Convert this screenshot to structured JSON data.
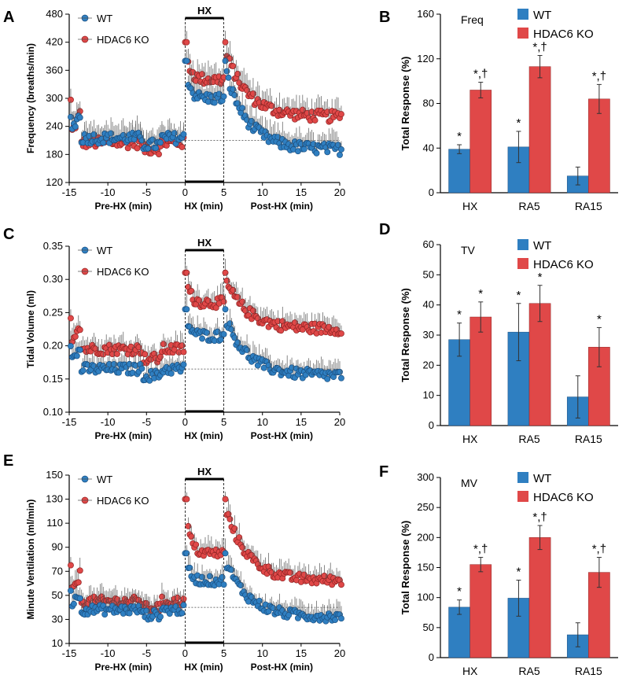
{
  "colors": {
    "wt": "#2f7fc1",
    "ko": "#e04848",
    "wt_edge": "#1a4f80",
    "ko_edge": "#8f2323",
    "axis": "#000000",
    "error": "#555555"
  },
  "chart_data": [
    {
      "id": "A",
      "panel_letter": "A",
      "type": "scatter",
      "ylabel": "Frequency (breaths/min)",
      "ylim": [
        120,
        480
      ],
      "yticks": [
        "120",
        "180",
        "240",
        "300",
        "360",
        "420",
        "480"
      ],
      "xlim": [
        -15,
        20
      ],
      "xticks": [
        "-15",
        "-10",
        "-5",
        "0",
        "5",
        "10",
        "15",
        "20"
      ],
      "xlabels": [
        "Pre-HX (min)",
        "HX (min)",
        "Post-HX (min)"
      ],
      "hx_label": "HX",
      "baseline": 210,
      "legend": [
        "WT",
        "HDAC6 KO"
      ],
      "pre_wt": 215,
      "pre_ko": 205,
      "peak_wt": 300,
      "peak_ko": 340,
      "post_wt": 190,
      "post_ko": 260,
      "noise": 12,
      "err": 28,
      "spike_wt": 380,
      "spike_ko": 420
    },
    {
      "id": "C",
      "panel_letter": "C",
      "type": "scatter",
      "ylabel": "Tidal Volume (ml)",
      "ylim": [
        0.1,
        0.35
      ],
      "yticks": [
        "0.10",
        "0.15",
        "0.20",
        "0.25",
        "0.30",
        "0.35"
      ],
      "xlim": [
        -15,
        20
      ],
      "xticks": [
        "-15",
        "-10",
        "-5",
        "0",
        "5",
        "10",
        "15",
        "20"
      ],
      "xlabels": [
        "Pre-HX (min)",
        "HX (min)",
        "Post-HX (min)"
      ],
      "hx_label": "HX",
      "baseline": 0.165,
      "legend": [
        "WT",
        "HDAC6 KO"
      ],
      "pre_wt": 0.165,
      "pre_ko": 0.195,
      "peak_wt": 0.215,
      "peak_ko": 0.265,
      "post_wt": 0.155,
      "post_ko": 0.225,
      "noise": 0.008,
      "err": 0.017,
      "spike_wt": 0.255,
      "spike_ko": 0.31
    },
    {
      "id": "E",
      "panel_letter": "E",
      "type": "scatter",
      "ylabel": "Minute Ventilation (ml/min)",
      "ylim": [
        10,
        150
      ],
      "yticks": [
        "10",
        "30",
        "50",
        "70",
        "90",
        "110",
        "130",
        "150"
      ],
      "xlim": [
        -15,
        20
      ],
      "xticks": [
        "-15",
        "-10",
        "-5",
        "0",
        "5",
        "10",
        "15",
        "20"
      ],
      "xlabels": [
        "Pre-HX (min)",
        "HX (min)",
        "Post-HX (min)"
      ],
      "hx_label": "HX",
      "baseline": 40,
      "legend": [
        "WT",
        "HDAC6 KO"
      ],
      "pre_wt": 38,
      "pre_ko": 45,
      "peak_wt": 62,
      "peak_ko": 85,
      "post_wt": 32,
      "post_ko": 62,
      "noise": 4,
      "err": 9,
      "spike_wt": 85,
      "spike_ko": 130
    },
    {
      "id": "B",
      "panel_letter": "B",
      "type": "bar",
      "title": "Freq",
      "ylabel": "Total Response (%)",
      "ylim": [
        0,
        160
      ],
      "yticks": [
        "0",
        "40",
        "80",
        "120",
        "160"
      ],
      "categories": [
        "HX",
        "RA5",
        "RA15"
      ],
      "legend": [
        "WT",
        "HDAC6 KO"
      ],
      "series": [
        {
          "name": "WT",
          "values": [
            39,
            41,
            15
          ],
          "errors": [
            4,
            14,
            8
          ],
          "labels": [
            "*",
            "*",
            ""
          ]
        },
        {
          "name": "HDAC6 KO",
          "values": [
            92,
            113,
            84
          ],
          "errors": [
            7,
            10,
            13
          ],
          "labels": [
            "*,†",
            "*,†",
            "*,†"
          ]
        }
      ]
    },
    {
      "id": "D",
      "panel_letter": "D",
      "type": "bar",
      "title": "TV",
      "ylabel": "Total Response (%)",
      "ylim": [
        0,
        60
      ],
      "yticks": [
        "0",
        "10",
        "20",
        "30",
        "40",
        "50",
        "60"
      ],
      "categories": [
        "HX",
        "RA5",
        "RA15"
      ],
      "legend": [
        "WT",
        "HDAC6 KO"
      ],
      "series": [
        {
          "name": "WT",
          "values": [
            28.5,
            31,
            9.5
          ],
          "errors": [
            5.5,
            9.5,
            7
          ],
          "labels": [
            "*",
            "*",
            ""
          ]
        },
        {
          "name": "HDAC6 KO",
          "values": [
            36,
            40.5,
            26
          ],
          "errors": [
            5,
            6,
            6.5
          ],
          "labels": [
            "*",
            "*",
            "*"
          ]
        }
      ]
    },
    {
      "id": "F",
      "panel_letter": "F",
      "type": "bar",
      "title": "MV",
      "ylabel": "Total Response (%)",
      "ylim": [
        0,
        300
      ],
      "yticks": [
        "0",
        "50",
        "100",
        "150",
        "200",
        "250",
        "300"
      ],
      "categories": [
        "HX",
        "RA5",
        "RA15"
      ],
      "legend": [
        "WT",
        "HDAC6 KO"
      ],
      "series": [
        {
          "name": "WT",
          "values": [
            84,
            99,
            38
          ],
          "errors": [
            12,
            30,
            20
          ],
          "labels": [
            "*",
            "*",
            ""
          ]
        },
        {
          "name": "HDAC6 KO",
          "values": [
            155,
            200,
            142
          ],
          "errors": [
            12,
            20,
            25
          ],
          "labels": [
            "*,†",
            "*,†",
            "*,†"
          ]
        }
      ]
    }
  ]
}
